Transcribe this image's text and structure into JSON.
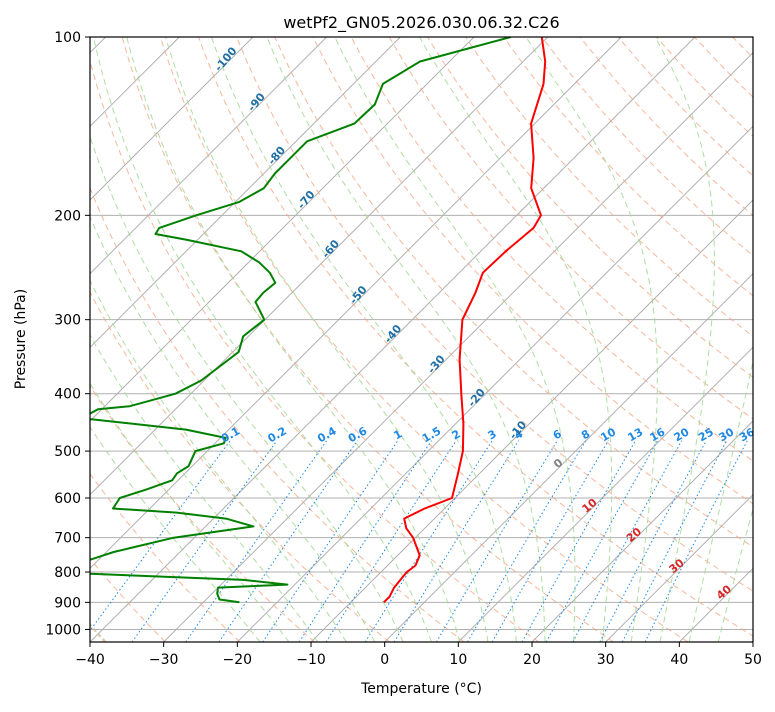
{
  "chart_data": {
    "type": "line",
    "title": "wetPf2_GN05.2026.030.06.32.C26",
    "xlabel": "Temperature (°C)",
    "ylabel": "Pressure (hPa)",
    "xlim": [
      -40,
      50
    ],
    "ylim": [
      1050,
      100
    ],
    "y_scale": "log",
    "grid": true,
    "x_ticks": [
      -40,
      -30,
      -20,
      -10,
      0,
      10,
      20,
      30,
      40,
      50
    ],
    "y_ticks": [
      100,
      200,
      300,
      400,
      500,
      600,
      700,
      800,
      900,
      1000
    ],
    "series": [
      {
        "color": "#ff0000",
        "style": "temperature",
        "pressure": [
          100,
          110,
          120,
          140,
          160,
          180,
          200,
          210,
          230,
          250,
          270,
          300,
          350,
          400,
          450,
          500,
          550,
          600,
          625,
          650,
          675,
          700,
          750,
          780,
          800,
          850,
          880,
          900
        ],
        "temperature": [
          -60.8,
          -57,
          -54.2,
          -50.5,
          -45.5,
          -41.7,
          -36.7,
          -36,
          -36.6,
          -36.8,
          -35.1,
          -33.2,
          -28.2,
          -23.3,
          -18.9,
          -15.3,
          -12.7,
          -10.4,
          -12.7,
          -14.1,
          -12.5,
          -10.3,
          -7,
          -6.2,
          -6.5,
          -6.1,
          -5.5,
          -5.5
        ]
      },
      {
        "color": "#008000",
        "style": "dewpoint",
        "pressure": [
          100,
          110,
          120,
          130,
          140,
          150,
          160,
          170,
          180,
          190,
          200,
          210,
          215,
          220,
          230,
          240,
          250,
          260,
          270,
          280,
          300,
          320,
          340,
          380,
          400,
          420,
          425,
          440,
          460,
          475,
          485,
          500,
          530,
          545,
          560,
          580,
          600,
          625,
          635,
          650,
          670,
          700,
          740,
          760,
          780,
          800,
          825,
          840,
          850,
          870,
          890,
          900
        ],
        "temperature": [
          -65,
          -74,
          -76,
          -74.3,
          -74.5,
          -78.5,
          -78.5,
          -78.5,
          -78,
          -79.5,
          -83.5,
          -86.8,
          -86.5,
          -81.4,
          -72.5,
          -68.6,
          -65.7,
          -63.6,
          -63.9,
          -63.7,
          -60.1,
          -60.7,
          -59.2,
          -60.4,
          -62.1,
          -66.6,
          -70.5,
          -71.5,
          -55.8,
          -49.3,
          -48.8,
          -51.6,
          -50.5,
          -51.1,
          -50.8,
          -53,
          -55.5,
          -55,
          -45.8,
          -38.3,
          -33.5,
          -42.8,
          -49,
          -50.9,
          -53,
          -55.2,
          -27.6,
          -21,
          -30,
          -29.3,
          -28.2,
          -25.1
        ]
      }
    ],
    "mixing_ratio_labels": [
      "0.1",
      "0.2",
      "0.4",
      "0.6",
      "1",
      "1.5",
      "2",
      "3",
      "4",
      "6",
      "8",
      "10",
      "13",
      "16",
      "20",
      "25",
      "30",
      "36"
    ],
    "mixing_ratio_values": [
      0.1,
      0.2,
      0.4,
      0.6,
      1,
      1.5,
      2,
      3,
      4,
      6,
      8,
      10,
      13,
      16,
      20,
      25,
      30,
      36
    ],
    "dry_adiabat_labels": [
      "-100",
      "-90",
      "-80",
      "-70",
      "-60",
      "-50",
      "-40",
      "-30",
      "-20",
      "-10"
    ],
    "dry_adiabat_label_points": [
      {
        "t": -100,
        "p": 110
      },
      {
        "t": -90,
        "p": 130
      },
      {
        "t": -80,
        "p": 160
      },
      {
        "t": -70,
        "p": 190
      },
      {
        "t": -60,
        "p": 230
      },
      {
        "t": -50,
        "p": 275
      },
      {
        "t": -40,
        "p": 320
      },
      {
        "t": -30,
        "p": 360
      },
      {
        "t": -20,
        "p": 410
      },
      {
        "t": -10,
        "p": 465
      }
    ],
    "moist_adiabat_labels": [
      "0",
      "10",
      "20",
      "30",
      "40"
    ],
    "moist_adiabat_label_points": [
      {
        "t": 0,
        "p": 530
      },
      {
        "t": 10,
        "p": 625
      },
      {
        "t": 20,
        "p": 700
      },
      {
        "t": 30,
        "p": 790
      },
      {
        "t": 40,
        "p": 875
      }
    ],
    "colors": {
      "temperature": "#ff0000",
      "dewpoint": "#008000",
      "grid": "#b0b0b0",
      "dry_adiabat": "#f4a582",
      "moist_adiabat": "#a6d99a",
      "mixing_ratio": "#1e88e5",
      "dry_label": "#1f6fa5",
      "moist_label": "#d62728",
      "zero_label": "#808080",
      "thick_dashed": "#d2b48c"
    }
  }
}
